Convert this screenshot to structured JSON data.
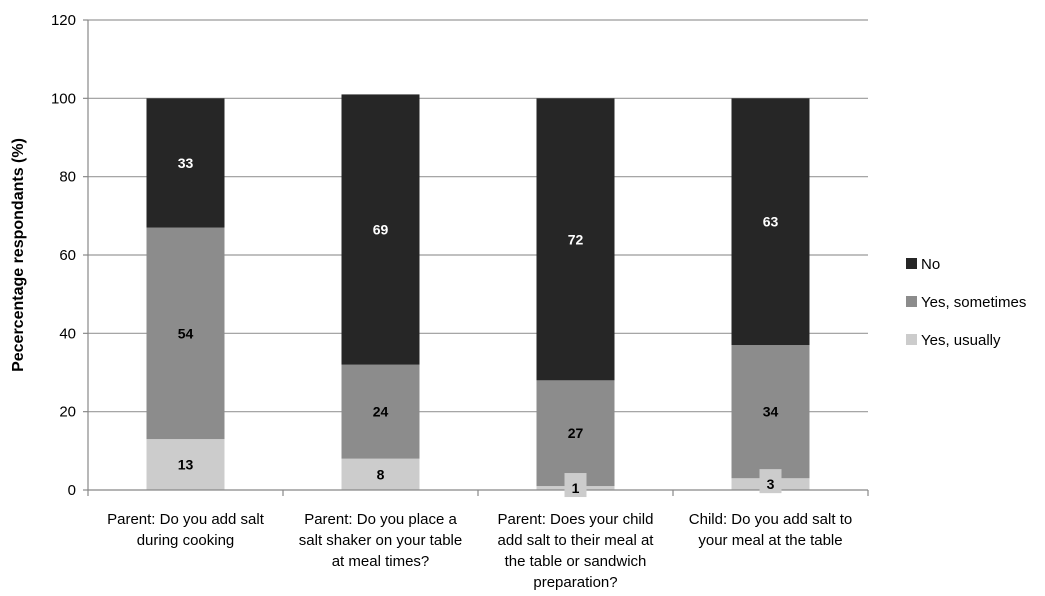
{
  "chart_data": {
    "type": "stacked-bar",
    "ylabel": "Pecercentage respondants (%)",
    "ylim": [
      0,
      120
    ],
    "yticks": [
      0,
      20,
      40,
      60,
      80,
      100,
      120
    ],
    "grid": true,
    "legend_position": "right",
    "categories": [
      [
        "Parent: Do you add salt",
        "during cooking"
      ],
      [
        "Parent: Do you place a",
        "salt shaker on your table",
        "at meal times?"
      ],
      [
        "Parent: Does your child",
        "add salt to their meal at",
        "the table or sandwich",
        "preparation?"
      ],
      [
        "Child: Do you add salt to",
        "your meal at the table"
      ]
    ],
    "series": [
      {
        "name": "Yes, usually",
        "color": "#cccccc",
        "label_color": "#000000",
        "values": [
          13,
          8,
          1,
          3
        ]
      },
      {
        "name": "Yes, sometimes",
        "color": "#8c8c8c",
        "label_color": "#000000",
        "values": [
          54,
          24,
          27,
          34
        ]
      },
      {
        "name": "No",
        "color": "#262626",
        "label_color": "#ffffff",
        "values": [
          33,
          69,
          72,
          63
        ]
      }
    ],
    "legend_order": [
      "No",
      "Yes, sometimes",
      "Yes, usually"
    ]
  }
}
